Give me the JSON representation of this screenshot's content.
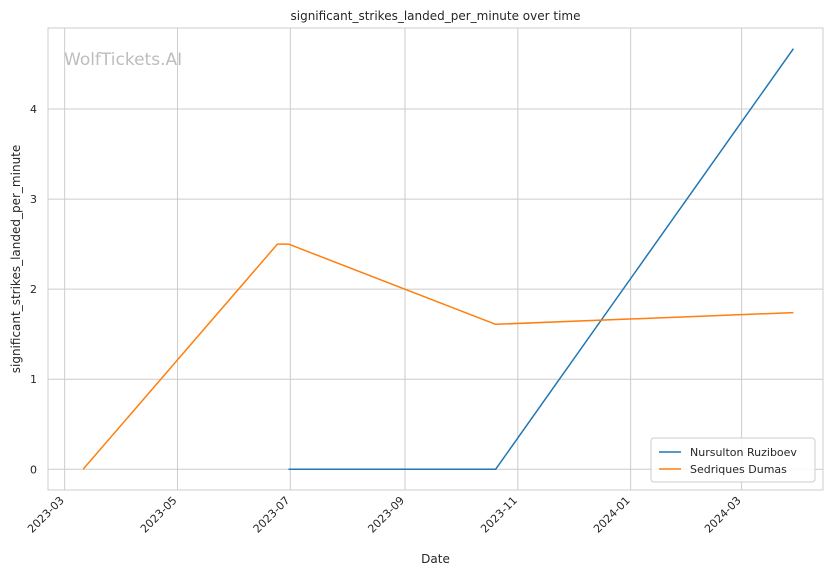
{
  "chart_data": {
    "type": "line",
    "title": "significant_strikes_landed_per_minute over time",
    "xlabel": "Date",
    "ylabel": "significant_strikes_landed_per_minute",
    "watermark": "WolfTickets.AI",
    "x_ticks": [
      "2023-03",
      "2023-05",
      "2023-07",
      "2023-09",
      "2023-11",
      "2024-01",
      "2024-03"
    ],
    "y_ticks": [
      0,
      1,
      2,
      3,
      4
    ],
    "ylim": [
      -0.23,
      4.9
    ],
    "xlim": [
      "2023-02-20",
      "2024-04-14"
    ],
    "grid": true,
    "legend_position": "bottom-right",
    "series": [
      {
        "name": "Nursulton Ruziboev",
        "color": "#1f77b4",
        "points": [
          {
            "x": "2023-06-30",
            "y": 0.0
          },
          {
            "x": "2023-10-20",
            "y": 0.0
          },
          {
            "x": "2024-03-29",
            "y": 4.67
          }
        ]
      },
      {
        "name": "Sedriques Dumas",
        "color": "#ff7f0e",
        "points": [
          {
            "x": "2023-03-11",
            "y": 0.0
          },
          {
            "x": "2023-06-24",
            "y": 2.5
          },
          {
            "x": "2023-06-30",
            "y": 2.5
          },
          {
            "x": "2023-10-20",
            "y": 1.61
          },
          {
            "x": "2024-03-29",
            "y": 1.74
          }
        ]
      }
    ]
  }
}
